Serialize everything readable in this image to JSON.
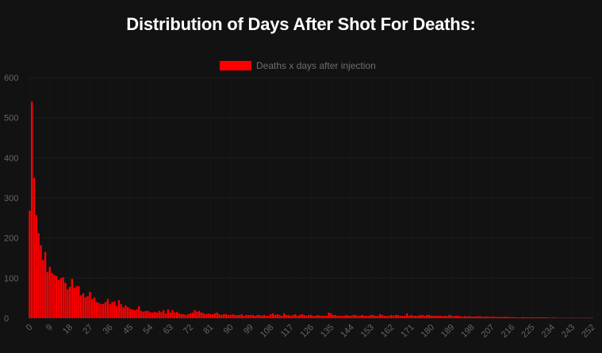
{
  "chart_data": {
    "type": "bar",
    "title": "Distribution of Days After Shot For Deaths:",
    "xlabel": "",
    "ylabel": "",
    "ylim": [
      0,
      600
    ],
    "y_ticks": [
      0,
      100,
      200,
      300,
      400,
      500,
      600
    ],
    "x_tick_step": 9,
    "x": [
      0,
      1,
      2,
      3,
      4,
      5,
      6,
      7,
      8,
      9,
      10,
      11,
      12,
      13,
      14,
      15,
      16,
      17,
      18,
      19,
      20,
      21,
      22,
      23,
      24,
      25,
      26,
      27,
      28,
      29,
      30,
      31,
      32,
      33,
      34,
      35,
      36,
      37,
      38,
      39,
      40,
      41,
      42,
      43,
      44,
      45,
      46,
      47,
      48,
      49,
      50,
      51,
      52,
      53,
      54,
      55,
      56,
      57,
      58,
      59,
      60,
      61,
      62,
      63,
      64,
      65,
      66,
      67,
      68,
      69,
      70,
      71,
      72,
      73,
      74,
      75,
      76,
      77,
      78,
      79,
      80,
      81,
      82,
      83,
      84,
      85,
      86,
      87,
      88,
      89,
      90,
      91,
      92,
      93,
      94,
      95,
      96,
      97,
      98,
      99,
      100,
      101,
      102,
      103,
      104,
      105,
      106,
      107,
      108,
      109,
      110,
      111,
      112,
      113,
      114,
      115,
      116,
      117,
      118,
      119,
      120,
      121,
      122,
      123,
      124,
      125,
      126,
      127,
      128,
      129,
      130,
      131,
      132,
      133,
      134,
      135,
      136,
      137,
      138,
      139,
      140,
      141,
      142,
      143,
      144,
      145,
      146,
      147,
      148,
      149,
      150,
      151,
      152,
      153,
      154,
      155,
      156,
      157,
      158,
      159,
      160,
      161,
      162,
      163,
      164,
      165,
      166,
      167,
      168,
      169,
      170,
      171,
      172,
      173,
      174,
      175,
      176,
      177,
      178,
      179,
      180,
      181,
      182,
      183,
      184,
      185,
      186,
      187,
      188,
      189,
      190,
      191,
      192,
      193,
      194,
      195,
      196,
      197,
      198,
      199,
      200,
      201,
      202,
      203,
      204,
      205,
      206,
      207,
      208,
      209,
      210,
      211,
      212,
      213,
      214,
      215,
      216,
      217,
      218,
      219,
      220,
      221,
      222,
      223,
      224,
      225,
      226,
      227,
      228,
      229,
      230,
      231,
      232,
      233,
      234,
      235,
      236,
      237,
      238,
      239,
      240,
      241,
      242,
      243,
      244,
      245,
      246,
      247,
      248,
      249,
      250,
      251,
      252
    ],
    "series": [
      {
        "name": "Deaths x days after injection",
        "color": "#ff0000",
        "values": [
          268,
          540,
          350,
          257,
          212,
          182,
          145,
          165,
          115,
          128,
          113,
          108,
          105,
          95,
          100,
          102,
          88,
          72,
          78,
          98,
          75,
          80,
          80,
          57,
          62,
          52,
          55,
          65,
          48,
          52,
          40,
          38,
          35,
          36,
          40,
          48,
          35,
          40,
          42,
          30,
          45,
          35,
          27,
          32,
          28,
          24,
          22,
          20,
          22,
          30,
          18,
          16,
          18,
          18,
          15,
          14,
          16,
          14,
          18,
          15,
          20,
          12,
          22,
          14,
          20,
          14,
          16,
          12,
          10,
          10,
          8,
          10,
          12,
          14,
          20,
          16,
          18,
          14,
          12,
          10,
          12,
          10,
          10,
          12,
          14,
          10,
          8,
          10,
          10,
          8,
          8,
          10,
          8,
          8,
          8,
          10,
          6,
          8,
          8,
          8,
          8,
          6,
          8,
          8,
          6,
          8,
          6,
          6,
          10,
          12,
          8,
          10,
          8,
          6,
          12,
          8,
          8,
          6,
          8,
          10,
          6,
          8,
          10,
          8,
          6,
          8,
          8,
          6,
          6,
          8,
          6,
          6,
          6,
          6,
          14,
          12,
          8,
          8,
          6,
          6,
          6,
          6,
          8,
          6,
          6,
          8,
          8,
          6,
          6,
          8,
          6,
          6,
          6,
          8,
          8,
          6,
          6,
          10,
          8,
          6,
          6,
          6,
          8,
          6,
          8,
          8,
          6,
          6,
          6,
          12,
          6,
          8,
          6,
          6,
          6,
          8,
          8,
          6,
          8,
          8,
          6,
          6,
          6,
          6,
          6,
          5,
          6,
          5,
          8,
          6,
          5,
          6,
          6,
          5,
          4,
          5,
          4,
          5,
          4,
          4,
          4,
          5,
          4,
          3,
          4,
          4,
          3,
          3,
          4,
          3,
          3,
          3,
          3,
          4,
          3,
          3,
          2,
          3,
          2,
          2,
          2,
          3,
          2,
          2,
          2,
          2,
          2,
          2,
          2,
          2,
          2,
          2,
          2,
          1,
          1,
          2,
          1,
          1,
          1,
          1,
          1,
          1,
          1,
          1,
          1,
          1,
          1,
          1,
          1,
          1,
          1,
          1,
          1
        ]
      }
    ],
    "legend_position": "top-center",
    "grid": true
  }
}
